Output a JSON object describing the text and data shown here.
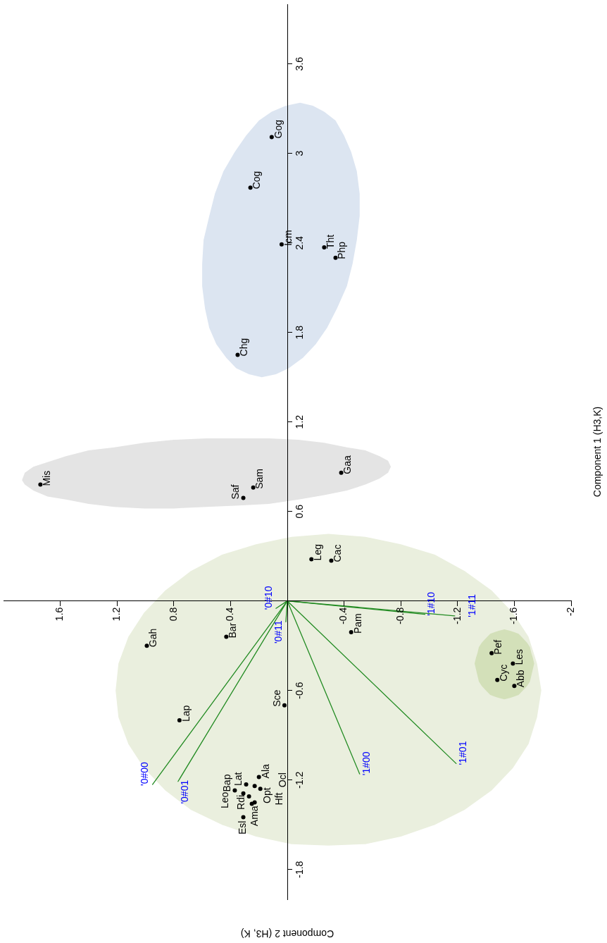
{
  "chart_data": {
    "type": "scatter",
    "xlabel": "Component 2 (H3, K)",
    "ylabel": "Component 1 (H3,K)",
    "xlim": [
      2,
      -2
    ],
    "ylim": [
      -2,
      4
    ],
    "xticks": [
      1.6,
      1.2,
      0.8,
      0.4,
      -0.4,
      -0.8,
      -1.2,
      -1.6,
      -2
    ],
    "yticks": [
      -1.8,
      -1.2,
      -0.6,
      0.6,
      1.2,
      1.8,
      2.4,
      3,
      3.6
    ],
    "series": [
      {
        "type": "scatter",
        "marker": "circle",
        "color": "#000000",
        "x": [
          0.11,
          0.26,
          0.04,
          -0.26,
          -0.34,
          0.35,
          1.74,
          0.31,
          0.24,
          -0.38,
          -0.17,
          -0.31,
          0.99,
          0.43,
          -0.45,
          0.76,
          0.02,
          -1.44,
          -1.59,
          -1.48,
          -1.6,
          0.37,
          0.31,
          0.29,
          0.2,
          0.19,
          0.23,
          0.27,
          0.23,
          0.25,
          0.31
        ],
        "values": [
          3.11,
          2.77,
          2.39,
          2.37,
          2.3,
          1.65,
          0.78,
          0.69,
          0.76,
          0.86,
          0.28,
          0.27,
          -0.3,
          -0.24,
          -0.21,
          -0.8,
          -0.7,
          -0.35,
          -0.42,
          -0.53,
          -0.57,
          -1.27,
          -1.29,
          -1.23,
          -1.18,
          -1.26,
          -1.24,
          -1.31,
          -1.35,
          -1.36,
          -1.45
        ]
      },
      {
        "type": "line",
        "name": "'0#00",
        "color": "#228b22",
        "x": [
          0,
          0.95
        ],
        "values": [
          0,
          -1.23
        ]
      },
      {
        "type": "line",
        "name": "'0#01",
        "color": "#228b22",
        "x": [
          0,
          0.77
        ],
        "values": [
          0,
          -1.21
        ]
      },
      {
        "type": "line",
        "name": "'0#10",
        "color": "#228b22",
        "x": [
          0,
          0.08
        ],
        "values": [
          0,
          -0.05
        ]
      },
      {
        "type": "line",
        "name": "'0#11",
        "color": "#228b22",
        "x": [
          0,
          0.01
        ],
        "values": [
          0,
          -0.14
        ]
      },
      {
        "type": "line",
        "name": "'1#00",
        "color": "#228b22",
        "x": [
          0,
          -0.51
        ],
        "values": [
          0,
          -1.16
        ]
      },
      {
        "type": "line",
        "name": "'1#01",
        "color": "#228b22",
        "x": [
          0,
          -1.19
        ],
        "values": [
          0,
          -1.09
        ]
      },
      {
        "type": "line",
        "name": "'1#10",
        "color": "#228b22",
        "x": [
          0,
          -0.97
        ],
        "values": [
          0,
          -0.09
        ]
      },
      {
        "type": "line",
        "name": "'1#11",
        "color": "#228b22",
        "x": [
          0,
          -1.18
        ],
        "values": [
          0,
          -0.1
        ]
      },
      {
        "type": "area",
        "color": "#d3e0b9",
        "x": [
          -1.32,
          -1.33,
          -1.34,
          -1.35,
          -1.37,
          -1.4,
          -1.43,
          -1.46,
          -1.49,
          -1.53,
          -1.57,
          -1.6,
          -1.63,
          -1.66,
          -1.69,
          -1.71,
          -1.72,
          -1.73,
          -1.74,
          -1.73,
          -1.72,
          -1.71,
          -1.69,
          -1.66,
          -1.63,
          -1.6,
          -1.57,
          -1.53,
          -1.49,
          -1.46,
          -1.43,
          -1.4,
          -1.37,
          -1.35,
          -1.34,
          -1.33
        ],
        "values": [
          -0.42,
          -0.38,
          -0.35,
          -0.31,
          -0.28,
          -0.25,
          -0.22,
          -0.21,
          -0.2,
          -0.19,
          -0.2,
          -0.21,
          -0.22,
          -0.25,
          -0.28,
          -0.31,
          -0.35,
          -0.38,
          -0.42,
          -0.46,
          -0.5,
          -0.54,
          -0.57,
          -0.6,
          -0.63,
          -0.64,
          -0.65,
          -0.66,
          -0.65,
          -0.64,
          -0.63,
          -0.6,
          -0.57,
          -0.54,
          -0.5,
          -0.46
        ]
      },
      {
        "type": "area",
        "color": "#dce5f1",
        "x": [
          0.59,
          0.55,
          0.51,
          0.45,
          0.37,
          0.29,
          0.2,
          0.11,
          0.01,
          -0.09,
          -0.18,
          -0.26,
          -0.34,
          -0.4,
          -0.45,
          -0.49,
          -0.51,
          -0.51,
          -0.49,
          -0.46,
          -0.42,
          -0.35,
          -0.28,
          -0.2,
          -0.11,
          -0.01,
          0.08,
          0.18,
          0.27,
          0.36,
          0.43,
          0.5,
          0.55,
          0.58,
          0.6,
          0.6
        ],
        "values": [
          2.42,
          2.58,
          2.73,
          2.88,
          3.01,
          3.12,
          3.22,
          3.28,
          3.32,
          3.34,
          3.32,
          3.28,
          3.22,
          3.12,
          3.01,
          2.88,
          2.73,
          2.58,
          2.42,
          2.26,
          2.11,
          1.96,
          1.83,
          1.72,
          1.63,
          1.56,
          1.52,
          1.5,
          1.52,
          1.56,
          1.63,
          1.72,
          1.83,
          1.96,
          2.11,
          2.26
        ]
      },
      {
        "type": "area",
        "color": "#e4e4e4",
        "x": [
          1.87,
          1.85,
          1.79,
          1.69,
          1.56,
          1.4,
          1.22,
          1.01,
          0.8,
          0.57,
          0.34,
          0.13,
          -0.08,
          -0.26,
          -0.42,
          -0.55,
          -0.65,
          -0.71,
          -0.73,
          -0.71,
          -0.65,
          -0.55,
          -0.42,
          -0.26,
          -0.08,
          0.13,
          0.34,
          0.57,
          0.8,
          1.01,
          1.22,
          1.4,
          1.56,
          1.69,
          1.79,
          1.85
        ],
        "values": [
          0.81,
          0.86,
          0.9,
          0.93,
          0.97,
          1.01,
          1.03,
          1.06,
          1.08,
          1.09,
          1.09,
          1.09,
          1.08,
          1.06,
          1.03,
          1.01,
          0.97,
          0.94,
          0.9,
          0.86,
          0.82,
          0.78,
          0.74,
          0.71,
          0.68,
          0.65,
          0.64,
          0.63,
          0.62,
          0.62,
          0.63,
          0.65,
          0.68,
          0.7,
          0.74,
          0.78
        ]
      },
      {
        "type": "area",
        "color": "#eaefde",
        "x": [
          1.21,
          1.19,
          1.12,
          1.01,
          0.86,
          0.68,
          0.46,
          0.22,
          -0.03,
          -0.29,
          -0.55,
          -0.8,
          -1.04,
          -1.25,
          -1.44,
          -1.59,
          -1.7,
          -1.76,
          -1.79,
          -1.76,
          -1.7,
          -1.59,
          -1.44,
          -1.25,
          -1.04,
          -0.8,
          -0.55,
          -0.29,
          -0.03,
          0.22,
          0.46,
          0.68,
          0.86,
          1.01,
          1.12,
          1.19
        ],
        "values": [
          -0.6,
          -0.42,
          -0.24,
          -0.08,
          0.07,
          0.2,
          0.31,
          0.38,
          0.43,
          0.45,
          0.43,
          0.38,
          0.31,
          0.2,
          0.07,
          -0.08,
          -0.24,
          -0.42,
          -0.6,
          -0.78,
          -0.96,
          -1.12,
          -1.27,
          -1.4,
          -1.5,
          -1.58,
          -1.63,
          -1.64,
          -1.63,
          -1.58,
          -1.5,
          -1.4,
          -1.27,
          -1.12,
          -0.96,
          -0.78
        ]
      }
    ],
    "annotations": [
      {
        "text": "Gog",
        "x": 0.11,
        "y": 3.11
      },
      {
        "text": "Cog",
        "x": 0.26,
        "y": 2.77
      },
      {
        "text": "Icm",
        "x": 0.04,
        "y": 2.39
      },
      {
        "text": "Tht",
        "x": -0.26,
        "y": 2.37
      },
      {
        "text": "Php",
        "x": -0.34,
        "y": 2.3
      },
      {
        "text": "Chg",
        "x": 0.35,
        "y": 1.65
      },
      {
        "text": "Mis",
        "x": 1.74,
        "y": 0.78
      },
      {
        "text": "Saf",
        "x": 0.31,
        "y": 0.69
      },
      {
        "text": "Sam",
        "x": 0.24,
        "y": 0.76
      },
      {
        "text": "Gaa",
        "x": -0.38,
        "y": 0.86
      },
      {
        "text": "Leg",
        "x": -0.17,
        "y": 0.28
      },
      {
        "text": "Cac",
        "x": -0.31,
        "y": 0.27
      },
      {
        "text": "Gah",
        "x": 0.99,
        "y": -0.3
      },
      {
        "text": "Bar",
        "x": 0.43,
        "y": -0.24
      },
      {
        "text": "Pam",
        "x": -0.45,
        "y": -0.21
      },
      {
        "text": "Lap",
        "x": 0.76,
        "y": -0.8
      },
      {
        "text": "Sce",
        "x": 0.02,
        "y": -0.7
      },
      {
        "text": "Pef",
        "x": -1.44,
        "y": -0.35
      },
      {
        "text": "Les",
        "x": -1.59,
        "y": -0.42
      },
      {
        "text": "Cyc",
        "x": -1.48,
        "y": -0.53
      },
      {
        "text": "Abb",
        "x": -1.6,
        "y": -0.57
      },
      {
        "text": "Bap",
        "x": 0.37,
        "y": -1.27
      },
      {
        "text": "Leo",
        "x": 0.31,
        "y": -1.29
      },
      {
        "text": "Lat",
        "x": 0.29,
        "y": -1.23
      },
      {
        "text": "Ala",
        "x": 0.2,
        "y": -1.18
      },
      {
        "text": "Opt",
        "x": 0.19,
        "y": -1.26
      },
      {
        "text": "Ocl",
        "x": 0.23,
        "y": -1.24
      },
      {
        "text": "Rdi",
        "x": 0.27,
        "y": -1.31
      },
      {
        "text": "Ama",
        "x": 0.23,
        "y": -1.35
      },
      {
        "text": "Hft",
        "x": 0.25,
        "y": -1.36
      },
      {
        "text": "Esl",
        "x": 0.31,
        "y": -1.45
      }
    ]
  }
}
